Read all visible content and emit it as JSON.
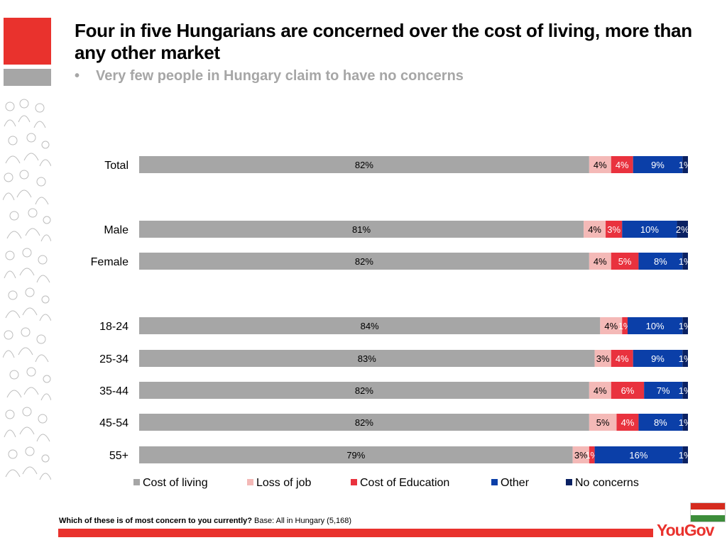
{
  "header": {
    "title": "Four in five Hungarians are concerned over the cost of living, more than any other market",
    "subtitle_bullet": "•",
    "subtitle": "Very few people in Hungary claim to have no concerns"
  },
  "chart_data": {
    "type": "bar",
    "orientation": "horizontal-stacked-100",
    "categories": [
      "Total",
      "Male",
      "Female",
      "18-24",
      "25-34",
      "35-44",
      "45-54",
      "55+"
    ],
    "series": [
      {
        "name": "Cost of living",
        "color": "#a6a6a6",
        "values": [
          82,
          81,
          82,
          84,
          83,
          82,
          82,
          79
        ]
      },
      {
        "name": "Loss of job",
        "color": "#f4b9b7",
        "values": [
          4,
          4,
          4,
          4,
          3,
          4,
          5,
          3
        ]
      },
      {
        "name": "Cost of Education",
        "color": "#e9323e",
        "values": [
          4,
          3,
          5,
          1,
          4,
          6,
          4,
          1
        ]
      },
      {
        "name": "Other",
        "color": "#0b3fa8",
        "values": [
          9,
          10,
          8,
          10,
          9,
          7,
          8,
          16
        ]
      },
      {
        "name": "No concerns",
        "color": "#0a2163",
        "values": [
          1,
          2,
          1,
          1,
          1,
          1,
          1,
          1
        ]
      }
    ],
    "xlim": [
      0,
      100
    ],
    "legend_position": "bottom",
    "unit": "%"
  },
  "footnote": {
    "question": "Which of these is of most concern to you currently?",
    "base": "Base: All in Hungary (5,168)"
  },
  "brand": {
    "logo": "YouGov",
    "accent": "#e9322d",
    "flag_colors": [
      "#d52b1e",
      "#ffffff",
      "#3c8d3a"
    ]
  }
}
